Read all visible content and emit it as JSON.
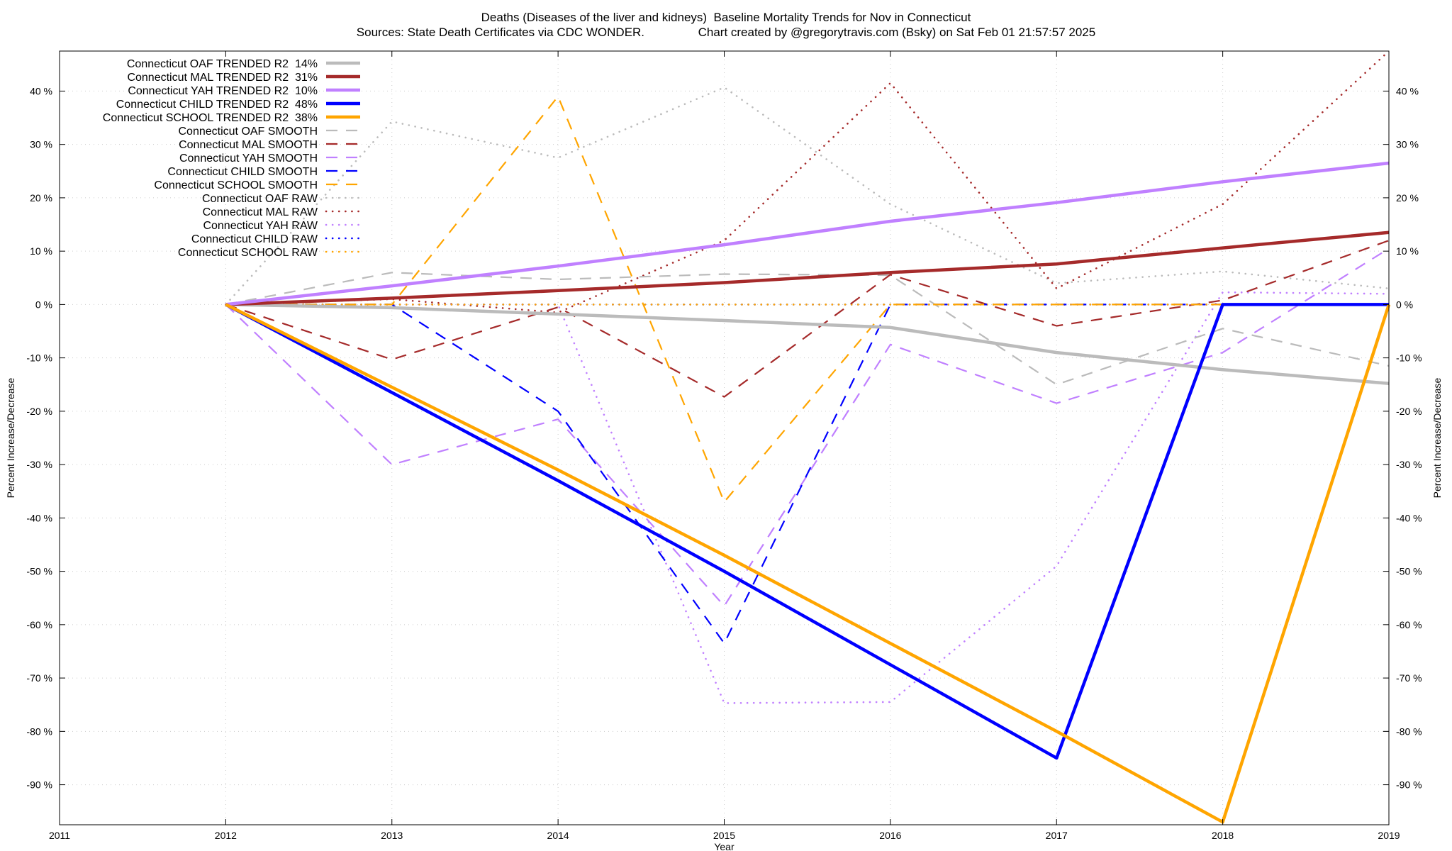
{
  "chart_data": {
    "type": "line",
    "title": "Deaths (Diseases of the liver and kidneys)  Baseline Mortality Trends for Nov in Connecticut",
    "subtitle": "Sources: State Death Certificates via CDC WONDER.                Chart created by @gregorytravis.com (Bsky) on Sat Feb 01 21:57:57 2025",
    "xlabel": "Year",
    "ylabel": "Percent Increase/Decrease",
    "y2label": "Percent Increase/Decrease",
    "xlim": [
      2011,
      2019
    ],
    "ylim": [
      -97.5,
      47.5
    ],
    "grid": true,
    "legend_position": "top-left",
    "x_ticks": [
      "2011",
      "2012",
      "2013",
      "2014",
      "2015",
      "2016",
      "2017",
      "2018",
      "2019"
    ],
    "y_ticks": [
      {
        "value": 40,
        "label": "40 %"
      },
      {
        "value": 30,
        "label": "30 %"
      },
      {
        "value": 20,
        "label": "20 %"
      },
      {
        "value": 10,
        "label": "10 %"
      },
      {
        "value": 0,
        "label": "0 %"
      },
      {
        "value": -10,
        "label": "-10 %"
      },
      {
        "value": -20,
        "label": "-20 %"
      },
      {
        "value": -30,
        "label": "-30 %"
      },
      {
        "value": -40,
        "label": "-40 %"
      },
      {
        "value": -50,
        "label": "-50 %"
      },
      {
        "value": -60,
        "label": "-60 %"
      },
      {
        "value": -70,
        "label": "-70 %"
      },
      {
        "value": -80,
        "label": "-80 %"
      },
      {
        "value": -90,
        "label": "-90 %"
      }
    ],
    "x": [
      2012,
      2013,
      2014,
      2015,
      2016,
      2017,
      2018,
      2019
    ],
    "series": [
      {
        "name": "Connecticut OAF TRENDED R2  14%",
        "style": "trended",
        "color": "#bbbbbb",
        "values": [
          0,
          -0.6,
          -1.8,
          -3.0,
          -4.3,
          -9.0,
          -12.2,
          -14.8
        ]
      },
      {
        "name": "Connecticut MAL TRENDED R2  31%",
        "style": "trended",
        "color": "#a52a2a",
        "values": [
          0,
          1.2,
          2.6,
          4.1,
          6.0,
          7.6,
          10.6,
          13.5
        ]
      },
      {
        "name": "Connecticut YAH TRENDED R2  10%",
        "style": "trended",
        "color": "#c080ff",
        "values": [
          0,
          3.5,
          7.2,
          11.2,
          15.6,
          19.1,
          23.0,
          26.5
        ]
      },
      {
        "name": "Connecticut CHILD TRENDED R2  48%",
        "style": "trended",
        "color": "#0000ff",
        "values": [
          0,
          -16.5,
          -33.0,
          -50.0,
          -67.5,
          -85.0,
          0,
          0
        ]
      },
      {
        "name": "Connecticut SCHOOL TRENDED R2  38%",
        "style": "trended",
        "color": "#ffa500",
        "values": [
          0,
          -15.5,
          -31.0,
          -47.0,
          -63.5,
          -80.0,
          -97.0,
          0
        ]
      },
      {
        "name": "Connecticut OAF SMOOTH",
        "style": "smooth",
        "color": "#bbbbbb",
        "values": [
          0,
          6.0,
          4.7,
          5.7,
          5.5,
          -15.0,
          -4.5,
          -11.5
        ]
      },
      {
        "name": "Connecticut MAL SMOOTH",
        "style": "smooth",
        "color": "#a52a2a",
        "values": [
          0,
          -10.3,
          -0.5,
          -17.3,
          5.6,
          -4.0,
          0.8,
          12.0
        ]
      },
      {
        "name": "Connecticut YAH SMOOTH",
        "style": "smooth",
        "color": "#c080ff",
        "values": [
          0,
          -30.0,
          -21.5,
          -56.5,
          -7.5,
          -18.5,
          -9.0,
          10.5
        ]
      },
      {
        "name": "Connecticut CHILD SMOOTH",
        "style": "smooth",
        "color": "#0000ff",
        "values": [
          0,
          0,
          -20.0,
          -63.5,
          0,
          0,
          0,
          0
        ]
      },
      {
        "name": "Connecticut SCHOOL SMOOTH",
        "style": "smooth",
        "color": "#ffa500",
        "values": [
          0,
          0,
          39.0,
          -37.0,
          0,
          0,
          0,
          0
        ]
      },
      {
        "name": "Connecticut OAF RAW",
        "style": "raw",
        "color": "#bbbbbb",
        "values": [
          0,
          34.3,
          27.5,
          40.7,
          18.8,
          4.0,
          6.2,
          3.0
        ]
      },
      {
        "name": "Connecticut MAL RAW",
        "style": "raw",
        "color": "#a52a2a",
        "values": [
          0,
          1.0,
          -1.5,
          12.0,
          41.5,
          3.0,
          18.8,
          47.5
        ]
      },
      {
        "name": "Connecticut YAH RAW",
        "style": "raw",
        "color": "#c080ff",
        "values": [
          0,
          0,
          0,
          -74.7,
          -74.5,
          -49.0,
          2.3,
          2.0
        ]
      },
      {
        "name": "Connecticut CHILD RAW",
        "style": "raw",
        "color": "#0000ff",
        "values": [
          0,
          0,
          0,
          0,
          0,
          0,
          0,
          0
        ]
      },
      {
        "name": "Connecticut SCHOOL RAW",
        "style": "raw",
        "color": "#ffa500",
        "values": [
          0,
          0,
          0,
          0,
          0,
          0,
          0,
          0
        ]
      }
    ]
  }
}
